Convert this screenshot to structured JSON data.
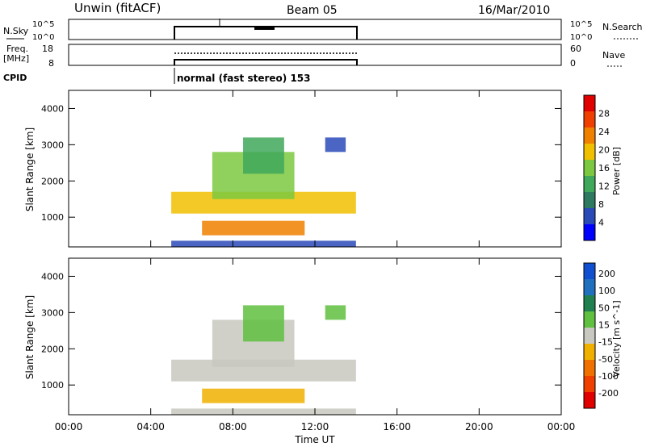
{
  "header": {
    "station": "Unwin (fitACF)",
    "beam": "Beam 05",
    "date": "16/Mar/2010"
  },
  "strip_labels": {
    "nsky": "N.Sky",
    "nsearch": "N.Search",
    "freq_line1": "Freq.",
    "freq_line2": "[MHz]",
    "nave": "Nave",
    "cpid": "CPID",
    "cpid_text": "normal (fast stereo) 153"
  },
  "strip_ticks": {
    "nsky_left": [
      "10^5",
      "10^0"
    ],
    "nsky_right": [
      "10^5",
      "10^0"
    ],
    "freq_left": [
      "18",
      "8"
    ],
    "freq_right": [
      "60",
      "0"
    ]
  },
  "colors": {
    "power": [
      "#0000ff",
      "#2a4ab8",
      "#2e7a60",
      "#3fa85a",
      "#7cc840",
      "#f0c000",
      "#f08000",
      "#f04000",
      "#e00000"
    ],
    "velocity": [
      "#1050d0",
      "#2070c0",
      "#208050",
      "#60c040",
      "#c8c8c0",
      "#f0b000",
      "#f07000",
      "#f04000",
      "#e00000"
    ]
  },
  "chart_data": [
    {
      "type": "heatmap",
      "title": "Power",
      "xlabel": "",
      "ylabel": "Slant Range [km]",
      "x_ticks": [
        "00:00",
        "04:00",
        "08:00",
        "12:00",
        "16:00",
        "20:00",
        "00:00"
      ],
      "y_ticks": [
        "1000",
        "2000",
        "3000",
        "4000"
      ],
      "xlim": [
        0,
        24
      ],
      "ylim": [
        180,
        4500
      ],
      "colorbar": {
        "label": "Power [dB]",
        "ticks": [
          "4",
          "8",
          "12",
          "16",
          "20",
          "24",
          "28"
        ],
        "range": [
          0,
          30
        ]
      },
      "regions": [
        {
          "x": [
            5.0,
            14.0
          ],
          "y": [
            1100,
            1700
          ],
          "level": 18
        },
        {
          "x": [
            7.0,
            11.0
          ],
          "y": [
            1500,
            2800
          ],
          "level": 16
        },
        {
          "x": [
            8.5,
            10.5
          ],
          "y": [
            2200,
            3200
          ],
          "level": 12
        },
        {
          "x": [
            6.5,
            11.5
          ],
          "y": [
            500,
            900
          ],
          "level": 20
        },
        {
          "x": [
            5.0,
            14.0
          ],
          "y": [
            180,
            350
          ],
          "level": 6
        },
        {
          "x": [
            12.5,
            13.5
          ],
          "y": [
            2800,
            3200
          ],
          "level": 6
        }
      ]
    },
    {
      "type": "heatmap",
      "title": "Velocity",
      "xlabel": "Time UT",
      "ylabel": "Slant Range [km]",
      "x_ticks": [
        "00:00",
        "04:00",
        "08:00",
        "12:00",
        "16:00",
        "20:00",
        "00:00"
      ],
      "y_ticks": [
        "1000",
        "2000",
        "3000",
        "4000"
      ],
      "xlim": [
        0,
        24
      ],
      "ylim": [
        180,
        4500
      ],
      "colorbar": {
        "label": "Velocity [m s^-1]",
        "ticks": [
          "200",
          "100",
          "50",
          "15",
          "-15",
          "-50",
          "-100",
          "-200"
        ],
        "range": [
          -250,
          250
        ]
      },
      "regions": [
        {
          "x": [
            5.0,
            14.0
          ],
          "y": [
            1100,
            1700
          ],
          "level": 0
        },
        {
          "x": [
            7.0,
            11.0
          ],
          "y": [
            1500,
            2800
          ],
          "level": 0
        },
        {
          "x": [
            8.5,
            10.5
          ],
          "y": [
            2200,
            3200
          ],
          "level": 30
        },
        {
          "x": [
            6.5,
            11.5
          ],
          "y": [
            500,
            900
          ],
          "level": -60
        },
        {
          "x": [
            5.0,
            14.0
          ],
          "y": [
            180,
            350
          ],
          "level": -20
        },
        {
          "x": [
            12.5,
            13.5
          ],
          "y": [
            2800,
            3200
          ],
          "level": 60
        }
      ]
    }
  ]
}
